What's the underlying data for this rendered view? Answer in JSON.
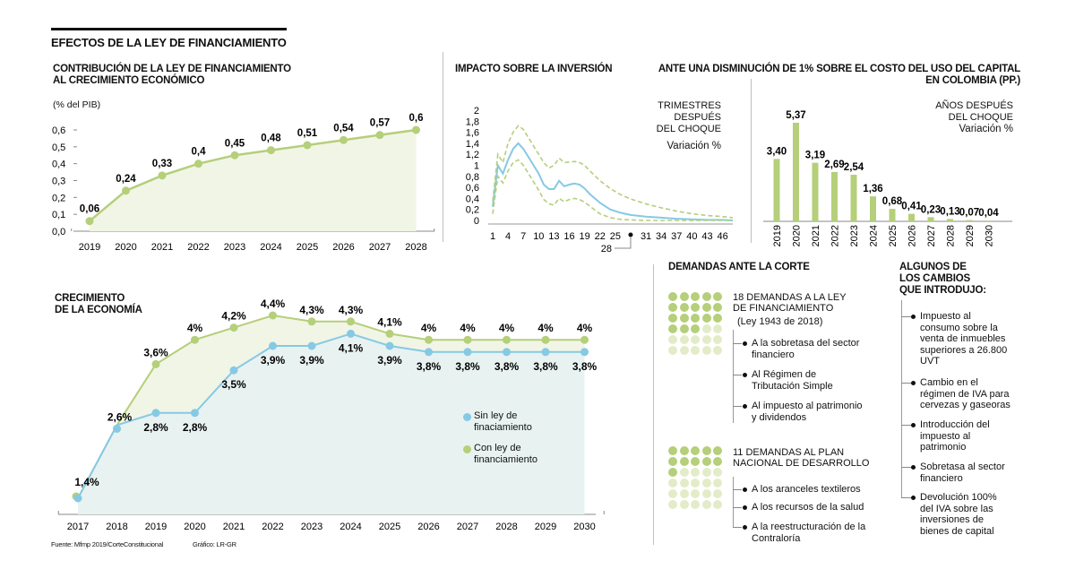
{
  "header": {
    "title": "EFECTOS DE LA LEY DE FINANCIAMIENTO"
  },
  "colors": {
    "green": "#b5cf7a",
    "green_fill": "#f1f5e6",
    "blue": "#86c9e4",
    "blue_fill": "#e8f2f1",
    "dot_dark": "#b5cf7a",
    "dot_light": "#e3ecc8",
    "text": "#111111"
  },
  "chart_data": [
    {
      "id": "contribucion",
      "type": "area",
      "title": "CONTRIBUCIÓN DE LA LEY DE FINANCIAMIENTO\nAL CRECIMIENTO ECONÓMICO",
      "title_lines": [
        "CONTRIBUCIÓN DE LA LEY DE FINANCIAMIENTO",
        "AL CRECIMIENTO ECONÓMICO"
      ],
      "ylabel": "(% del PIB)",
      "categories": [
        "2019",
        "2020",
        "2021",
        "2022",
        "2023",
        "2024",
        "2025",
        "2026",
        "2027",
        "2028"
      ],
      "values": [
        0.06,
        0.24,
        0.33,
        0.4,
        0.45,
        0.48,
        0.51,
        0.54,
        0.57,
        0.6
      ],
      "value_labels": [
        "0,06",
        "0,24",
        "0,33",
        "0,4",
        "0,45",
        "0,48",
        "0,51",
        "0,54",
        "0,57",
        "0,6"
      ],
      "yticks": [
        0,
        0.1,
        0.2,
        0.3,
        0.4,
        0.5,
        0.6
      ],
      "ytick_labels": [
        "0,0",
        "0,1",
        "0,2",
        "0,3",
        "0,4",
        "0,5",
        "0,6"
      ],
      "ylim": [
        0,
        0.6
      ],
      "grid": false
    },
    {
      "id": "inversion",
      "type": "line",
      "title": "IMPACTO SOBRE LA INVERSIÓN",
      "note_lines": [
        "TRIMESTRES",
        "DESPUÉS",
        "DEL CHOQUE"
      ],
      "unit_label": "Variación %",
      "ylim": [
        0,
        2
      ],
      "yticks": [
        0,
        0.2,
        0.4,
        0.6,
        0.8,
        1,
        1.2,
        1.4,
        1.6,
        1.8,
        2
      ],
      "ytick_labels": [
        "0",
        "0,2",
        "0,4",
        "0,6",
        "0,8",
        "1",
        "1,2",
        "1,4",
        "1,6",
        "1,8",
        "2"
      ],
      "xlim": [
        1,
        48
      ],
      "xticks": [
        1,
        4,
        7,
        10,
        13,
        16,
        19,
        22,
        25,
        31,
        34,
        37,
        40,
        43,
        46
      ],
      "xtick_labels": [
        "1",
        "4",
        "7",
        "10",
        "13",
        "16",
        "19",
        "22",
        "25",
        "31",
        "34",
        "37",
        "40",
        "43",
        "46"
      ],
      "callout_x": 28,
      "callout_label": "28",
      "series": [
        {
          "name": "central",
          "style": "solid",
          "x": [
            1,
            2,
            3,
            4,
            5,
            6,
            7,
            8,
            9,
            10,
            11,
            12,
            13,
            14,
            15,
            16,
            17,
            18,
            19,
            20,
            22,
            24,
            26,
            28,
            31,
            34,
            37,
            40,
            43,
            46,
            48
          ],
          "y": [
            0.25,
            1.0,
            0.85,
            1.1,
            1.3,
            1.4,
            1.3,
            1.15,
            1.0,
            0.85,
            0.65,
            0.57,
            0.57,
            0.72,
            0.62,
            0.65,
            0.67,
            0.65,
            0.58,
            0.48,
            0.32,
            0.2,
            0.14,
            0.1,
            0.07,
            0.05,
            0.03,
            0.02,
            0.01,
            0.01,
            0.0
          ]
        },
        {
          "name": "upper",
          "style": "dashed",
          "x": [
            1,
            2,
            3,
            4,
            5,
            6,
            7,
            8,
            9,
            10,
            11,
            12,
            13,
            14,
            15,
            16,
            17,
            18,
            19,
            20,
            22,
            24,
            26,
            28,
            31,
            34,
            37,
            40,
            43,
            46,
            48
          ],
          "y": [
            0.35,
            1.2,
            1.05,
            1.4,
            1.6,
            1.72,
            1.65,
            1.5,
            1.35,
            1.2,
            1.05,
            0.95,
            1.0,
            1.13,
            1.05,
            1.06,
            1.07,
            1.05,
            1.0,
            0.9,
            0.72,
            0.58,
            0.47,
            0.39,
            0.3,
            0.23,
            0.17,
            0.12,
            0.09,
            0.07,
            0.05
          ]
        },
        {
          "name": "lower",
          "style": "dashed",
          "x": [
            1,
            2,
            3,
            4,
            5,
            6,
            7,
            8,
            9,
            10,
            11,
            12,
            13,
            14,
            15,
            16,
            17,
            18,
            19,
            20,
            22,
            24,
            26,
            28,
            31,
            34,
            37,
            40,
            43,
            46,
            48
          ],
          "y": [
            0.12,
            0.8,
            0.68,
            0.9,
            1.05,
            1.1,
            1.0,
            0.85,
            0.7,
            0.55,
            0.38,
            0.3,
            0.28,
            0.4,
            0.34,
            0.38,
            0.4,
            0.38,
            0.33,
            0.26,
            0.12,
            0.05,
            0.02,
            0.01,
            0.0,
            0.0,
            0.0,
            0.0,
            0.0,
            0.0,
            0.0
          ]
        }
      ]
    },
    {
      "id": "costo_capital",
      "type": "bar",
      "title_lines": [
        "ANTE UNA DISMINUCIÓN DE 1% SOBRE EL COSTO DEL USO DEL CAPITAL",
        "EN COLOMBIA (PP.)"
      ],
      "note_lines": [
        "AÑOS DESPUÉS",
        "DEL CHOQUE"
      ],
      "unit_label": "Variación %",
      "categories": [
        "2019",
        "2020",
        "2021",
        "2022",
        "2023",
        "2024",
        "2025",
        "2026",
        "2027",
        "2028",
        "2029",
        "2030"
      ],
      "values": [
        3.4,
        5.37,
        3.19,
        2.69,
        2.54,
        1.36,
        0.68,
        0.41,
        0.23,
        0.13,
        0.07,
        0.04
      ],
      "value_labels": [
        "3,40",
        "5,37",
        "3,19",
        "2,69",
        "2,54",
        "1,36",
        "0,68",
        "0,41",
        "0,23",
        "0,13",
        "0,07",
        "0,04"
      ],
      "ylim": [
        0,
        5.37
      ]
    },
    {
      "id": "crecimiento",
      "type": "area",
      "title_lines": [
        "CRECIMIENTO",
        "DE LA ECONOMÍA"
      ],
      "categories": [
        "2017",
        "2018",
        "2019",
        "2020",
        "2021",
        "2022",
        "2023",
        "2024",
        "2025",
        "2026",
        "2027",
        "2028",
        "2029",
        "2030"
      ],
      "ylim": [
        1.4,
        4.4
      ],
      "series": [
        {
          "name": "Sin ley de finaciamiento",
          "legend_lines": [
            "Sin ley de",
            "finaciamiento"
          ],
          "values": [
            1.4,
            2.6,
            2.8,
            2.8,
            3.5,
            3.9,
            3.9,
            4.1,
            3.9,
            3.8,
            3.8,
            3.8,
            3.8,
            3.8
          ],
          "value_labels": [
            "1,4%",
            "",
            "2,8%",
            "2,8%",
            "3,5%",
            "3,9%",
            "3,9%",
            "4,1%",
            "3,9%",
            "3,8%",
            "3,8%",
            "3,8%",
            "3,8%",
            "3,8%"
          ]
        },
        {
          "name": "Con ley de financiamiento",
          "legend_lines": [
            "Con ley de",
            "financiamiento"
          ],
          "values": [
            1.4,
            2.6,
            3.6,
            4.0,
            4.2,
            4.4,
            4.3,
            4.3,
            4.1,
            4.0,
            4.0,
            4.0,
            4.0,
            4.0
          ],
          "value_labels": [
            "",
            "2,6%",
            "3,6%",
            "4%",
            "4,2%",
            "4,4%",
            "4,3%",
            "4,3%",
            "4,1%",
            "4%",
            "4%",
            "4%",
            "4%",
            "4%"
          ]
        }
      ]
    }
  ],
  "demandas": {
    "title": "DEMANDAS ANTE LA CORTE",
    "groups": [
      {
        "count": 18,
        "total_dots": 30,
        "title_lines": [
          "18 DEMANDAS A LA LEY",
          "DE FINANCIAMIENTO"
        ],
        "subtitle": "(Ley 1943 de 2018)",
        "items": [
          [
            "A la sobretasa del sector",
            "financiero"
          ],
          [
            "Al Régimen de",
            "Tributación Simple"
          ],
          [
            "Al impuesto al patrimonio",
            "y dividendos"
          ]
        ]
      },
      {
        "count": 11,
        "total_dots": 30,
        "title_lines": [
          "11 DEMANDAS AL PLAN",
          "NACIONAL DE DESARROLLO"
        ],
        "subtitle": "",
        "items": [
          [
            "A los aranceles textileros"
          ],
          [
            "A los recursos de la salud"
          ],
          [
            "A la reestructuración de la",
            "Contraloría"
          ]
        ]
      }
    ]
  },
  "cambios": {
    "title_lines": [
      "ALGUNOS DE",
      "LOS CAMBIOS",
      "QUE INTRODUJO:"
    ],
    "items": [
      [
        "Impuesto al",
        "consumo sobre la",
        "venta de inmuebles",
        "superiores a 26.800",
        "UVT"
      ],
      [
        "Cambio en el",
        "régimen de IVA para",
        "cervezas y gaseoras"
      ],
      [
        "Introducción del",
        "impuesto al",
        "patrimonio"
      ],
      [
        "Sobretasa al sector",
        "financiero"
      ],
      [
        "Devolución 100%",
        "del IVA sobre las",
        "inversiones de",
        "bienes de capital"
      ]
    ]
  },
  "footer": {
    "source": "Fuente: Mfmp 2019/CorteConstitucional",
    "credit": "Gráfico: LR-GR"
  }
}
